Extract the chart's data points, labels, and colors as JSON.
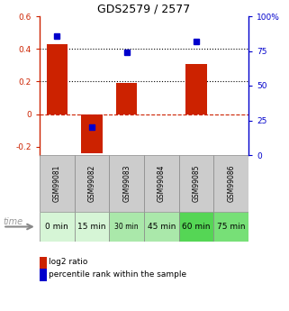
{
  "title": "GDS2579 / 2577",
  "samples": [
    "GSM99081",
    "GSM99082",
    "GSM99083",
    "GSM99084",
    "GSM99085",
    "GSM99086"
  ],
  "time_labels": [
    "0 min",
    "15 min",
    "30 min",
    "45 min",
    "60 min",
    "75 min"
  ],
  "time_colors": [
    "#d6f5d6",
    "#d6f5d6",
    "#aae8aa",
    "#aae8aa",
    "#55d655",
    "#77e077"
  ],
  "log2_ratio": [
    0.43,
    -0.24,
    0.19,
    0.0,
    0.31,
    0.0
  ],
  "percentile_rank_pct": [
    86,
    20,
    74,
    0,
    82,
    0
  ],
  "bar_color": "#cc2200",
  "dot_color": "#0000cc",
  "ylim_left": [
    -0.25,
    0.6
  ],
  "ylim_right": [
    0,
    100
  ],
  "yticks_left": [
    -0.2,
    0.0,
    0.2,
    0.4,
    0.6
  ],
  "yticks_right": [
    0,
    25,
    50,
    75,
    100
  ],
  "sample_bg": "#cccccc",
  "fig_bg": "#ffffff"
}
